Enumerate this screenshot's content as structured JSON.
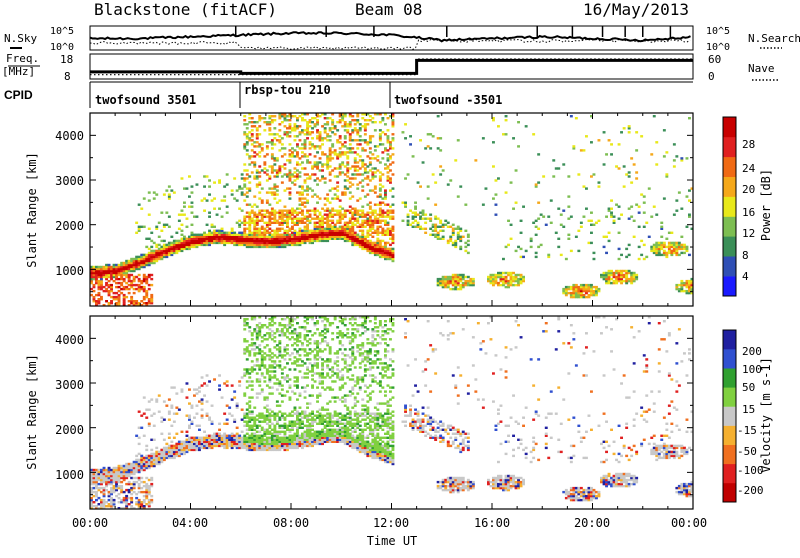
{
  "header": {
    "radar": "Blackstone (fitACF)",
    "beam": "Beam 08",
    "date": "16/May/2013"
  },
  "noise_panel": {
    "left_label": "N.Sky",
    "left_ticks": [
      "10^5",
      "10^0"
    ],
    "right_ticks": [
      "10^5",
      "10^0"
    ],
    "right_label": "N.Search"
  },
  "freq_panel": {
    "left_label_1": "Freq.",
    "left_label_2": "[MHz]",
    "left_ticks": [
      "18",
      "8"
    ],
    "right_ticks": [
      "60",
      "0"
    ],
    "right_label": "Nave"
  },
  "cpid_panel": {
    "label": "CPID",
    "segments": [
      {
        "name": "twofsound 3501",
        "start": 0,
        "end": 6
      },
      {
        "name": "rbsp-tou 210",
        "start": 6,
        "end": 12
      },
      {
        "name": "twofsound -3501",
        "start": 12,
        "end": 24
      }
    ]
  },
  "x_axis": {
    "label": "Time UT",
    "ticks": [
      "00:00",
      "04:00",
      "08:00",
      "12:00",
      "16:00",
      "20:00",
      "00:00"
    ]
  },
  "power_panel": {
    "ylabel": "Slant Range [km]",
    "yticks": [
      "1000",
      "2000",
      "3000",
      "4000"
    ],
    "colorbar_title": "Power [dB]",
    "colorbar_ticks": [
      "4",
      "8",
      "12",
      "16",
      "20",
      "24",
      "28"
    ]
  },
  "velocity_panel": {
    "ylabel": "Slant Range [km]",
    "yticks": [
      "1000",
      "2000",
      "3000",
      "4000"
    ],
    "colorbar_title": "Velocity [m s-1]",
    "colorbar_ticks": [
      "200",
      "100",
      "50",
      "15",
      "-15",
      "-50",
      "-100",
      "-200"
    ]
  },
  "colors": {
    "power_scale": [
      "#1a1aff",
      "#2f4fb5",
      "#3b8f58",
      "#7dbe52",
      "#e8e81a",
      "#f5a81a",
      "#f06a14",
      "#e02020",
      "#c80000"
    ],
    "velocity_scale": [
      "#2020a0",
      "#3050d0",
      "#30a030",
      "#80d040",
      "#c8c8c8",
      "#f5b030",
      "#f07020",
      "#e02020",
      "#c00000"
    ]
  },
  "chart_data": [
    {
      "type": "line",
      "title": "Noise and operating parameters",
      "x_hours": [
        0,
        2,
        4,
        6,
        8,
        10,
        12,
        14,
        16,
        18,
        20,
        22,
        24
      ],
      "series": [
        {
          "name": "N.Sky",
          "values": [
            4.6,
            4.6,
            4.7,
            4.8,
            4.9,
            4.9,
            4.8,
            4.5,
            4.6,
            4.7,
            4.6,
            4.5,
            4.7
          ]
        },
        {
          "name": "Freq. [MHz]",
          "values": [
            11,
            11,
            11,
            11,
            10,
            10,
            10,
            10,
            16,
            16,
            16,
            16,
            16
          ]
        },
        {
          "name": "Nave",
          "values": [
            10,
            10,
            10,
            10,
            10,
            10,
            10,
            10,
            50,
            50,
            50,
            50,
            50
          ]
        }
      ]
    },
    {
      "type": "heatmap",
      "title": "Power [dB]",
      "xlabel": "Time UT",
      "ylabel": "Slant Range [km]",
      "xlim_hours": [
        0,
        24
      ],
      "ylim_km": [
        180,
        4500
      ],
      "value_range": [
        0,
        30
      ],
      "main_band": [
        {
          "t": 0.0,
          "km": 900
        },
        {
          "t": 1.0,
          "km": 950
        },
        {
          "t": 2.0,
          "km": 1150
        },
        {
          "t": 3.0,
          "km": 1400
        },
        {
          "t": 4.0,
          "km": 1600
        },
        {
          "t": 5.0,
          "km": 1700
        },
        {
          "t": 6.0,
          "km": 1650
        },
        {
          "t": 7.0,
          "km": 1600
        },
        {
          "t": 8.0,
          "km": 1650
        },
        {
          "t": 9.0,
          "km": 1750
        },
        {
          "t": 10.0,
          "km": 1800
        },
        {
          "t": 11.0,
          "km": 1500
        },
        {
          "t": 12.0,
          "km": 1300
        }
      ],
      "patches": [
        {
          "t": 14.5,
          "km": 700
        },
        {
          "t": 16.5,
          "km": 750
        },
        {
          "t": 19.5,
          "km": 500
        },
        {
          "t": 21.0,
          "km": 800
        },
        {
          "t": 23.0,
          "km": 1450
        },
        {
          "t": 24.0,
          "km": 600
        }
      ]
    },
    {
      "type": "heatmap",
      "title": "Velocity [m s-1]",
      "xlabel": "Time UT",
      "ylabel": "Slant Range [km]",
      "xlim_hours": [
        0,
        24
      ],
      "ylim_km": [
        180,
        4500
      ],
      "value_range": [
        -200,
        200
      ]
    }
  ]
}
